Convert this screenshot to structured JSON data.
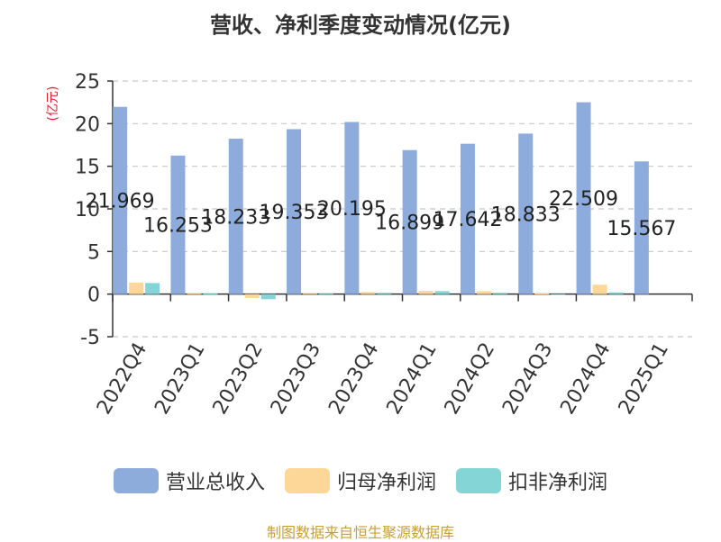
{
  "chart_data": {
    "type": "bar",
    "title": "营收、净利季度变动情况(亿元)",
    "ylabel": "(亿元)",
    "ylim": [
      -5,
      25
    ],
    "yticks": [
      -5,
      0,
      5,
      10,
      15,
      20,
      25
    ],
    "grid": true,
    "legend_position": "bottom",
    "categories": [
      "2022Q4",
      "2023Q1",
      "2023Q2",
      "2023Q3",
      "2023Q4",
      "2024Q1",
      "2024Q2",
      "2024Q3",
      "2024Q4",
      "2025Q1"
    ],
    "series": [
      {
        "name": "营业总收入",
        "color": "#8eacdb",
        "values": [
          21.969,
          16.253,
          18.233,
          19.353,
          20.195,
          16.899,
          17.642,
          18.833,
          22.509,
          15.567
        ],
        "labels": [
          "21.969",
          "16.253",
          "18.233",
          "19.353",
          "20.195",
          "16.899",
          "17.642",
          "18.833",
          "22.509",
          "15.567"
        ]
      },
      {
        "name": "归母净利润",
        "color": "#fdd797",
        "values": [
          1.35,
          0.1,
          -0.45,
          0.12,
          0.25,
          0.38,
          0.35,
          0.08,
          1.1,
          0.0
        ]
      },
      {
        "name": "扣非净利润",
        "color": "#84d5d6",
        "values": [
          1.3,
          0.05,
          -0.6,
          0.1,
          0.15,
          0.35,
          0.15,
          -0.1,
          0.2,
          0.0
        ]
      }
    ]
  },
  "footer": {
    "source": "制图数据来自恒生聚源数据库"
  }
}
